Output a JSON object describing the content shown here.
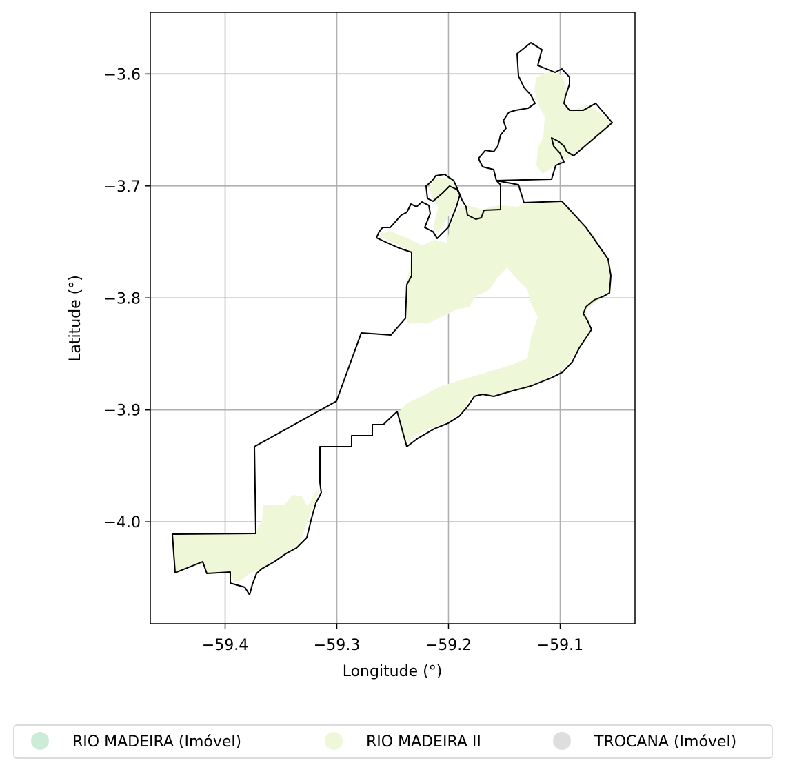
{
  "chart_data": {
    "type": "map",
    "xlabel": "Longitude (°)",
    "ylabel": "Latitude (°)",
    "xlim": [
      -59.467,
      -59.033
    ],
    "ylim": [
      -4.091,
      -3.545
    ],
    "xticks": [
      -59.4,
      -59.3,
      -59.2,
      -59.1
    ],
    "yticks": [
      -3.6,
      -3.7,
      -3.8,
      -3.9,
      -4.0
    ],
    "xtick_labels": [
      "−59.4",
      "−59.3",
      "−59.2",
      "−59.1"
    ],
    "ytick_labels": [
      "−3.6",
      "−3.7",
      "−3.8",
      "−3.9",
      "−4.0"
    ],
    "grid": true,
    "legend_position": "bottom",
    "legend": [
      {
        "label": "RIO MADEIRA (Imóvel)",
        "color": "#cdebd9"
      },
      {
        "label": "RIO MADEIRA II",
        "color": "#eef8d8"
      },
      {
        "label": "TROCANA (Imóvel)",
        "color": "#dedede"
      }
    ],
    "fill_color": "#eef8d8",
    "outline_color": "#000000"
  }
}
